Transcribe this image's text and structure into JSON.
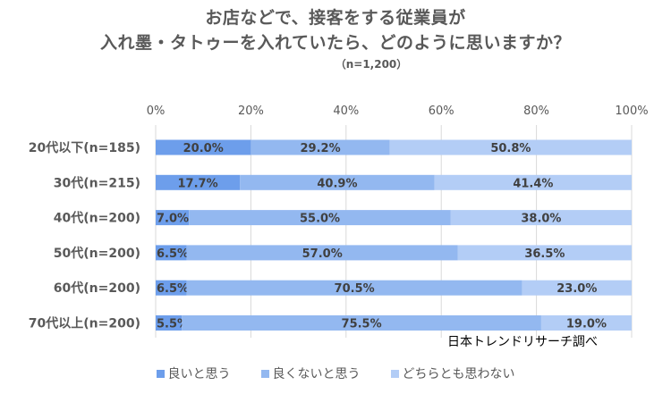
{
  "colors": {
    "good": "#6d9eeb",
    "not_good": "#93b8f0",
    "neither": "#b3cdf6"
  },
  "chart_data": {
    "type": "bar",
    "orientation": "horizontal",
    "stacked": true,
    "title_lines": [
      "お店などで、接客をする従業員が",
      "入れ墨・タトゥーを入れていたら、どのように思いますか？"
    ],
    "subtitle": "（n=1,200）",
    "categories": [
      "20代以下(n=185)",
      "30代(n=215)",
      "40代(n=200)",
      "50代(n=200)",
      "60代(n=200)",
      "70代以上(n=200)"
    ],
    "series": [
      {
        "name": "良いと思う",
        "values": [
          20.0,
          17.7,
          7.0,
          6.5,
          6.5,
          5.5
        ]
      },
      {
        "name": "良くないと思う",
        "values": [
          29.2,
          40.9,
          55.0,
          57.0,
          70.5,
          75.5
        ]
      },
      {
        "name": "どちらとも思わない",
        "values": [
          50.8,
          41.4,
          38.0,
          36.5,
          23.0,
          19.0
        ]
      }
    ],
    "value_labels": [
      [
        "20.0%",
        "29.2%",
        "50.8%"
      ],
      [
        "17.7%",
        "40.9%",
        "41.4%"
      ],
      [
        "7.0%",
        "55.0%",
        "38.0%"
      ],
      [
        "6.5%",
        "57.0%",
        "36.5%"
      ],
      [
        "6.5%",
        "70.5%",
        "23.0%"
      ],
      [
        "5.5%",
        "75.5%",
        "19.0%"
      ]
    ],
    "x_ticks": [
      "0%",
      "20%",
      "40%",
      "60%",
      "80%",
      "100%"
    ],
    "xlim": [
      0,
      100
    ],
    "grid": true,
    "legend_position": "bottom",
    "source": "日本トレンドリサーチ調べ"
  }
}
